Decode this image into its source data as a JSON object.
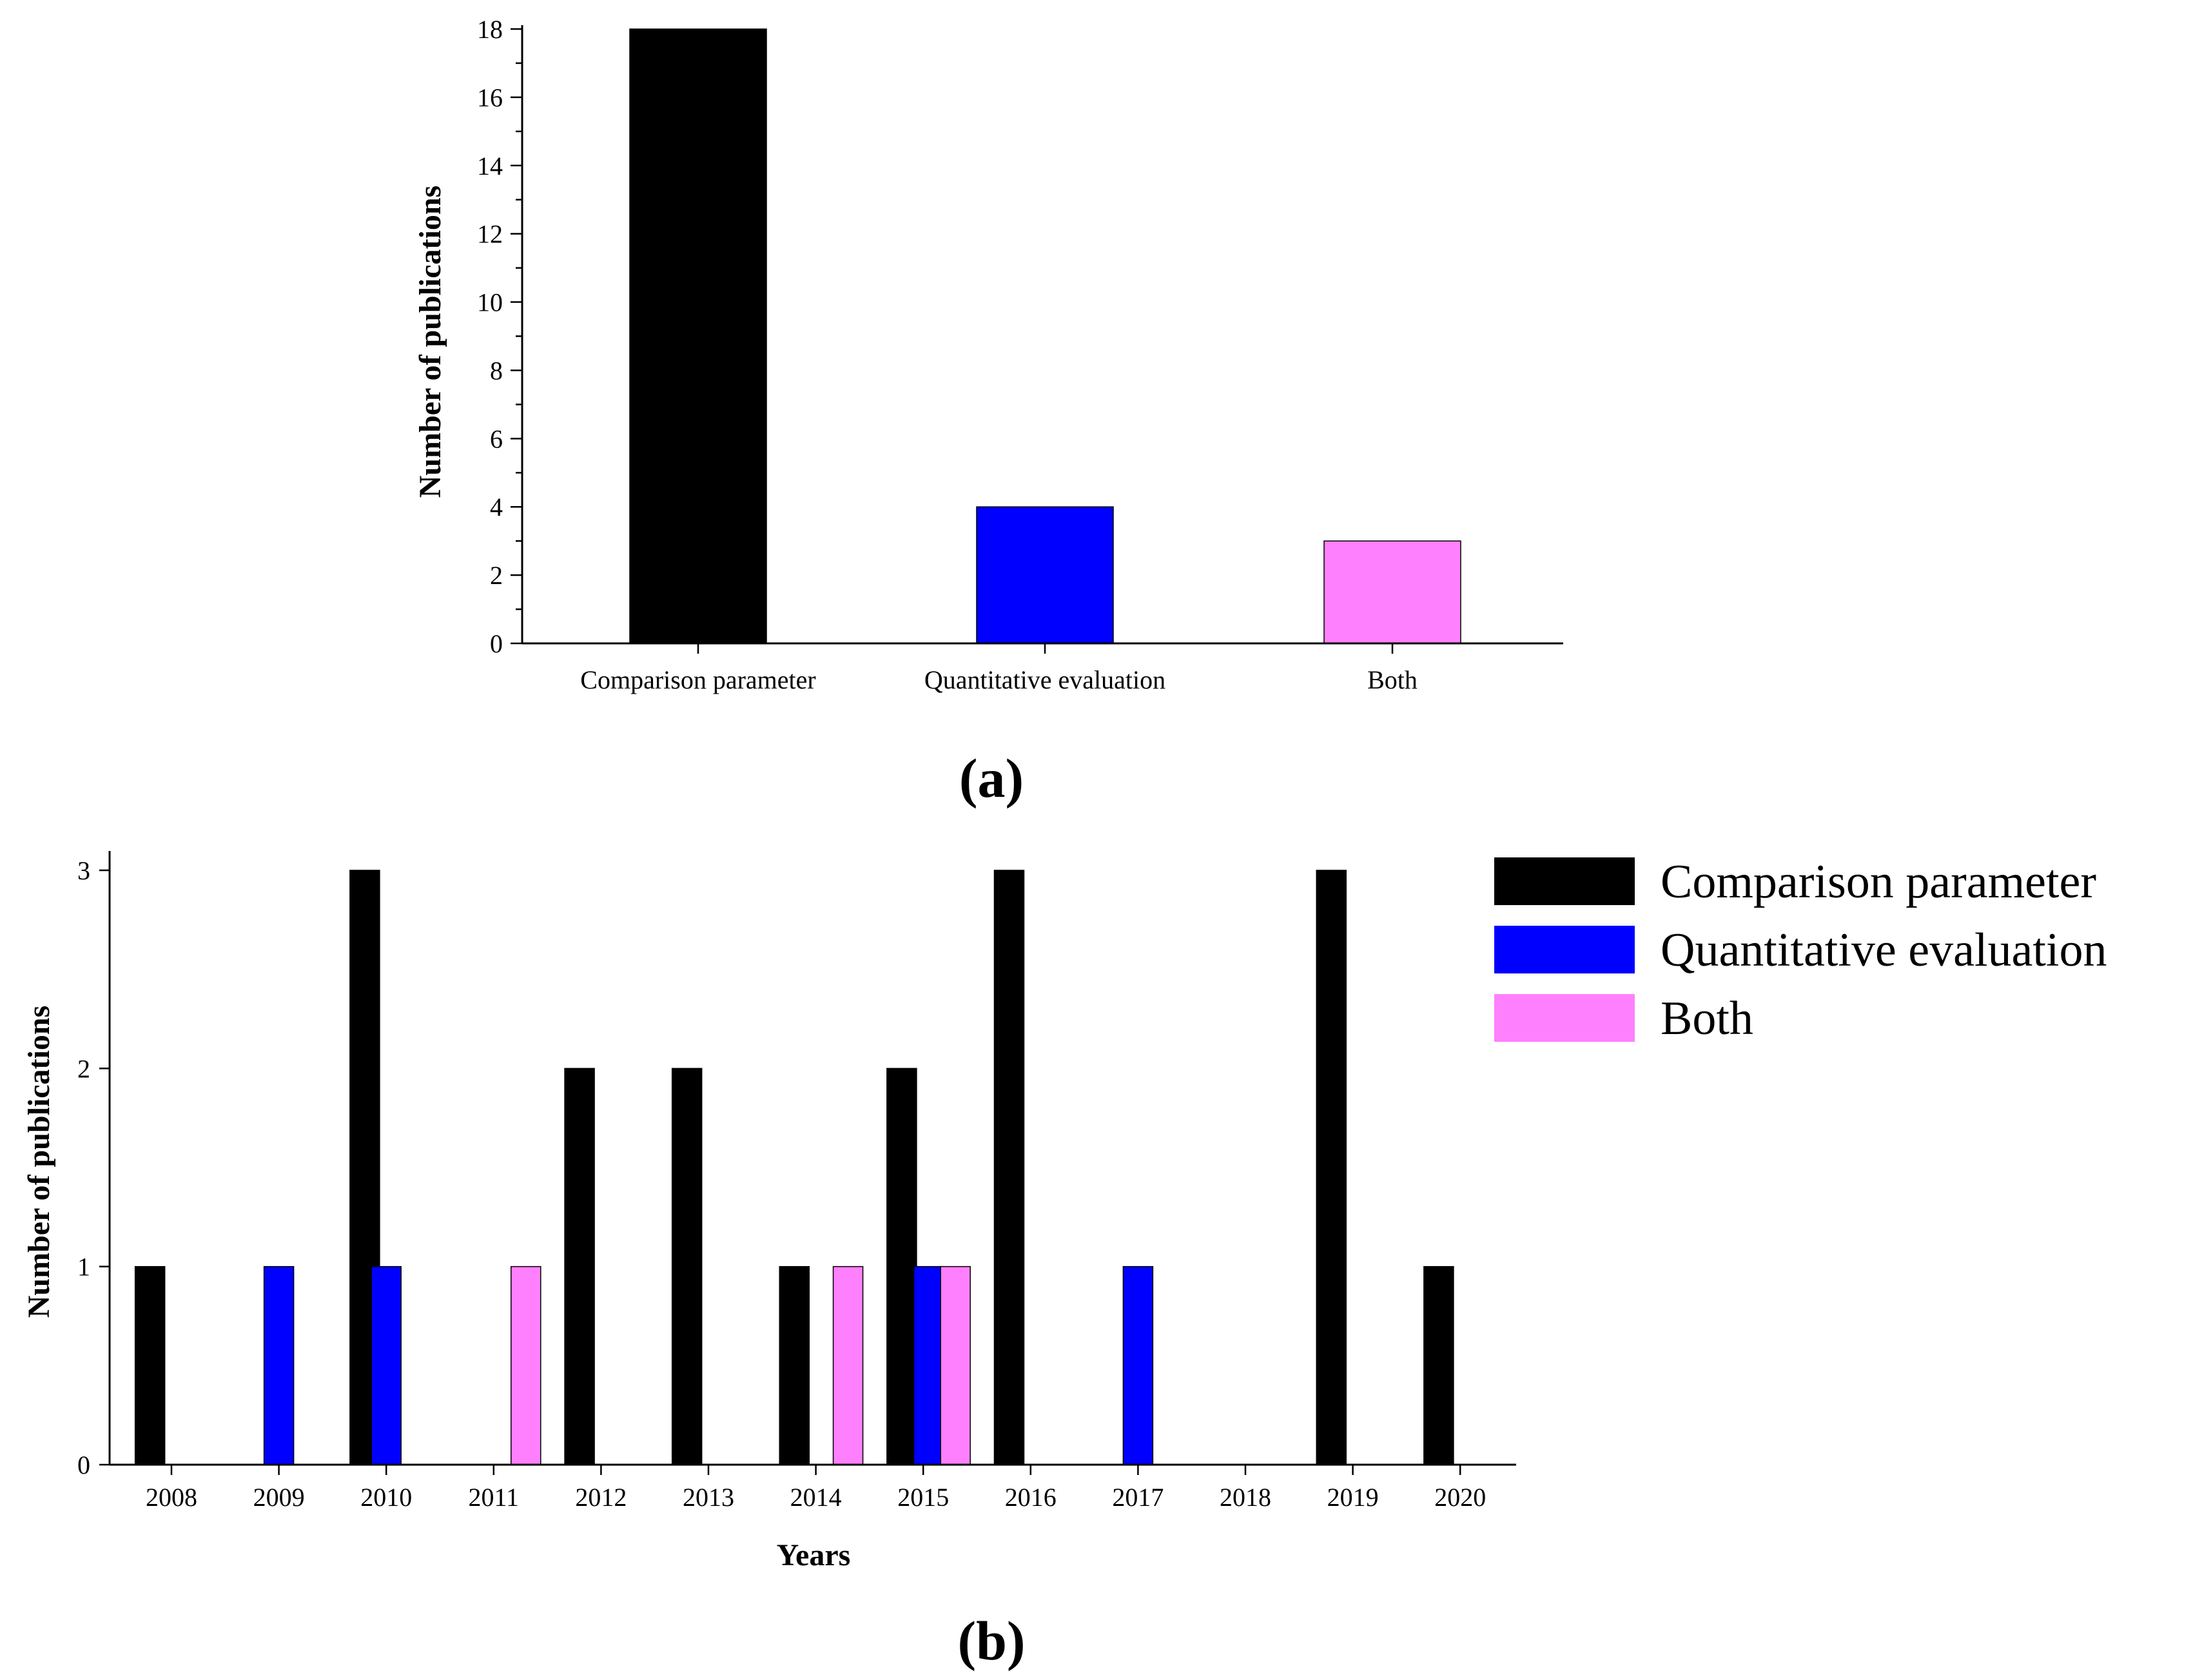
{
  "chart_data": [
    {
      "type": "bar",
      "panel_label": "(a)",
      "categories": [
        "Comparison parameter",
        "Quantitative evaluation",
        "Both"
      ],
      "values": [
        18,
        4,
        3
      ],
      "colors": [
        "#000000",
        "#0000ff",
        "#ff80ff"
      ],
      "title": "",
      "xlabel": "",
      "ylabel": "Number of publications",
      "ylim": [
        0,
        18
      ],
      "yticks": [
        "0",
        "2",
        "4",
        "6",
        "8",
        "10",
        "12",
        "14",
        "16",
        "18"
      ],
      "grid": false
    },
    {
      "type": "bar",
      "panel_label": "(b)",
      "categories": [
        "2008",
        "2009",
        "2010",
        "2011",
        "2012",
        "2013",
        "2014",
        "2015",
        "2016",
        "2017",
        "2018",
        "2019",
        "2020"
      ],
      "bars": [
        {
          "series": 0,
          "x": 2007.8,
          "value": 1
        },
        {
          "series": 1,
          "x": 2009.0,
          "value": 1
        },
        {
          "series": 0,
          "x": 2009.8,
          "value": 3
        },
        {
          "series": 1,
          "x": 2010.0,
          "value": 1
        },
        {
          "series": 2,
          "x": 2011.3,
          "value": 1
        },
        {
          "series": 0,
          "x": 2011.8,
          "value": 2
        },
        {
          "series": 0,
          "x": 2012.8,
          "value": 2
        },
        {
          "series": 0,
          "x": 2013.8,
          "value": 1
        },
        {
          "series": 2,
          "x": 2014.3,
          "value": 1
        },
        {
          "series": 0,
          "x": 2014.8,
          "value": 2
        },
        {
          "series": 1,
          "x": 2015.05,
          "value": 1
        },
        {
          "series": 2,
          "x": 2015.3,
          "value": 1
        },
        {
          "series": 0,
          "x": 2015.8,
          "value": 3
        },
        {
          "series": 1,
          "x": 2017.0,
          "value": 1
        },
        {
          "series": 0,
          "x": 2018.8,
          "value": 3
        },
        {
          "series": 0,
          "x": 2019.8,
          "value": 1
        }
      ],
      "series": [
        {
          "name": "Comparison parameter",
          "color": "#000000"
        },
        {
          "name": "Quantitative evaluation",
          "color": "#0000ff"
        },
        {
          "name": "Both",
          "color": "#ff80ff"
        }
      ],
      "title": "",
      "xlabel": "Years",
      "ylabel": "Number of publications",
      "ylim": [
        0,
        3
      ],
      "yticks": [
        "0",
        "1",
        "2",
        "3"
      ],
      "xlim": [
        2007.6,
        2020.5
      ],
      "legend_position": "right",
      "grid": false
    }
  ]
}
